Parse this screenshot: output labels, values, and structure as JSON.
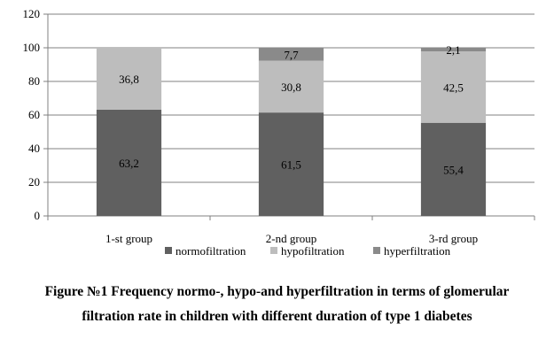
{
  "chart_data": {
    "type": "bar",
    "stacked": true,
    "categories": [
      "1-st group",
      "2-nd group",
      "3-rd group"
    ],
    "series": [
      {
        "name": "normofiltration",
        "values": [
          63.2,
          61.5,
          55.4
        ],
        "labels": [
          "63,2",
          "61,5",
          "55,4"
        ],
        "color": "#606060"
      },
      {
        "name": "hypofiltration",
        "values": [
          36.8,
          30.8,
          42.5
        ],
        "labels": [
          "36,8",
          "30,8",
          "42,5"
        ],
        "color": "#bdbdbd"
      },
      {
        "name": "hyperfiltration",
        "values": [
          0,
          7.7,
          2.1
        ],
        "labels": [
          "",
          "7,7",
          "2,1"
        ],
        "color": "#8a8a8a"
      }
    ],
    "yticks": [
      "0",
      "20",
      "40",
      "60",
      "80",
      "100",
      "120"
    ],
    "ylim": [
      0,
      120
    ],
    "grid": true,
    "legend_position": "bottom"
  },
  "caption": "Figure №1 Frequency normo-, hypo-and hyperfiltration in terms of glomerular filtration rate in children with different duration of type 1 diabetes"
}
